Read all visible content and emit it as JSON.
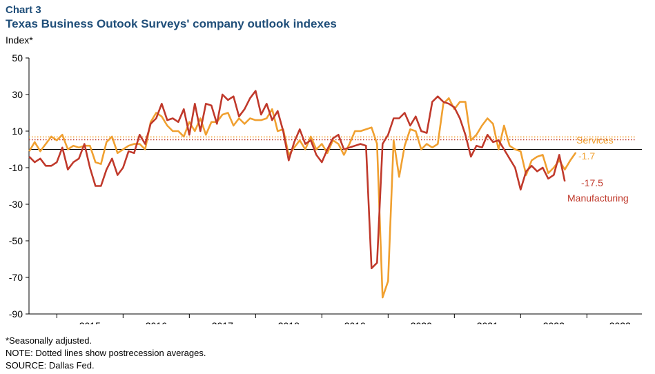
{
  "header": {
    "chart_number": "Chart 3",
    "title": "Texas Business Outook Surveys' company outlook indexes",
    "y_unit": "Index*"
  },
  "notes": {
    "footnote": "*Seasonally adjusted.",
    "note": "NOTE: Dotted lines show postrecession averages.",
    "source": "SOURCE: Dallas Fed."
  },
  "colors": {
    "services": "#f0a030",
    "manufacturing": "#c0392b",
    "title": "#1f4e79"
  },
  "chart_data": {
    "type": "line",
    "title": "Texas Business Outook Surveys' company outlook indexes",
    "ylabel": "Index*",
    "xlabel": "",
    "ylim": [
      -90,
      50
    ],
    "xlim": [
      2014.58,
      2023.83
    ],
    "yticks": [
      50,
      30,
      10,
      -10,
      -30,
      -50,
      -70,
      -90
    ],
    "xtick_labels": [
      "2015",
      "2016",
      "2017",
      "2018",
      "2019",
      "2020",
      "2021",
      "2022",
      "2023"
    ],
    "grid": false,
    "annotations": {
      "services_label": "Services",
      "services_last": "-1.7",
      "manufacturing_last": "-17.5",
      "manufacturing_label": "Manufacturing"
    },
    "series": [
      {
        "name": "Services",
        "color": "#f0a030",
        "postrecession_average": 6.8,
        "x_start": 2014.583,
        "step": 0.08333,
        "values": [
          -1,
          4,
          -1,
          3,
          7,
          5,
          8,
          0,
          2,
          1,
          2,
          2,
          -7,
          -8,
          4,
          7,
          -2,
          0,
          2,
          3,
          3,
          0,
          15,
          20,
          18,
          13,
          10,
          10,
          7,
          15,
          10,
          17,
          8,
          15,
          15,
          19,
          20,
          13,
          17,
          14,
          17,
          16,
          16,
          17,
          22,
          10,
          11,
          -3,
          1,
          5,
          0,
          7,
          0,
          3,
          -2,
          5,
          3,
          -3,
          3,
          10,
          10,
          11,
          12,
          3,
          -81,
          -72,
          5,
          -15,
          2,
          11,
          10,
          0,
          3,
          1,
          3,
          25,
          28,
          22,
          26,
          26,
          5,
          8,
          13,
          17,
          14,
          0,
          13,
          2,
          0,
          -1,
          -14,
          -6,
          -4,
          -3,
          -13,
          -10,
          -6,
          -11,
          -6,
          -1.7
        ]
      },
      {
        "name": "Manufacturing",
        "color": "#c0392b",
        "postrecession_average": 5.3,
        "x_start": 2014.583,
        "step": 0.08333,
        "values": [
          -4,
          -7,
          -5,
          -9,
          -9,
          -7,
          1,
          -11,
          -7,
          -5,
          3,
          -10,
          -20,
          -20,
          -11,
          -5,
          -14,
          -10,
          -1,
          -2,
          8,
          3,
          14,
          17,
          25,
          16,
          17,
          15,
          22,
          8,
          25,
          10,
          25,
          24,
          14,
          30,
          27,
          29,
          18,
          22,
          28,
          32,
          19,
          25,
          16,
          21,
          10,
          -6,
          4,
          11,
          3,
          5,
          -3,
          -7,
          0,
          6,
          8,
          0,
          1,
          2,
          3,
          2,
          -65,
          -62,
          3,
          8,
          17,
          17,
          20,
          13,
          18,
          10,
          9,
          26,
          29,
          26,
          25,
          23,
          17,
          8,
          -4,
          2,
          1,
          8,
          4,
          5,
          0,
          -5,
          -10,
          -22,
          -12,
          -9,
          -12,
          -10,
          -16,
          -14,
          -3,
          -17.5
        ]
      }
    ]
  }
}
